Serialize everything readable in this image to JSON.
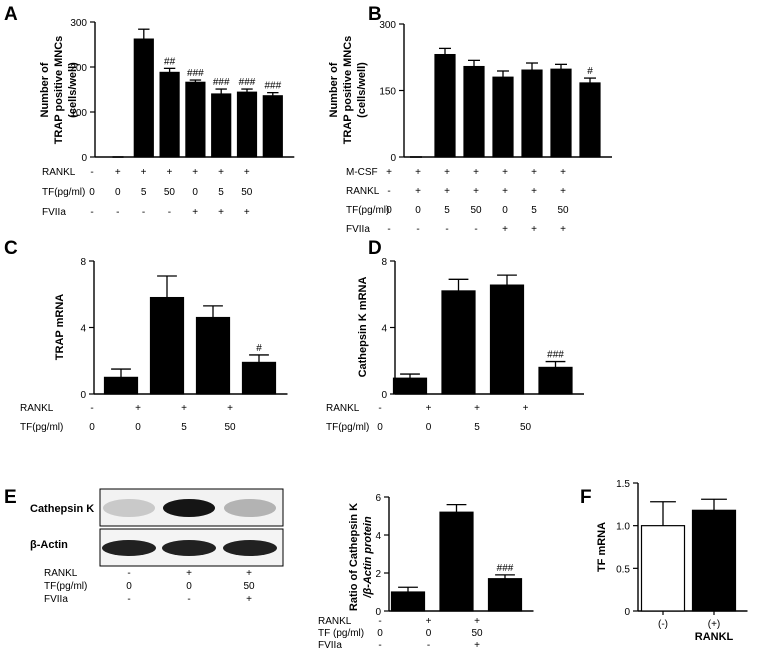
{
  "panels": {
    "A": {
      "letter": "A",
      "ylabel_lines": [
        "Number of",
        "TRAP positive MNCs",
        "(cells/well)"
      ],
      "yticks": [
        "0",
        "100",
        "200",
        "300"
      ],
      "ylim": [
        0,
        300
      ]
    },
    "B": {
      "letter": "B",
      "ylabel_lines": [
        "Number of",
        "TRAP positive MNCs",
        "(cells/well)"
      ],
      "yticks": [
        "0",
        "150",
        "300"
      ],
      "ylim": [
        0,
        300
      ]
    },
    "C": {
      "letter": "C",
      "ylabel": "TRAP mRNA",
      "yticks": [
        "0",
        "4",
        "8"
      ],
      "ylim": [
        0,
        8
      ]
    },
    "D": {
      "letter": "D",
      "ylabel": "Cathepsin K mRNA",
      "yticks": [
        "0",
        "4",
        "8"
      ],
      "ylim": [
        0,
        8
      ]
    },
    "E": {
      "letter": "E",
      "ylabel_lines": [
        "Ratio of Cathepsin K",
        "/β-Actin protein"
      ],
      "yticks": [
        "0",
        "2",
        "4",
        "6"
      ],
      "ylim": [
        0,
        6
      ],
      "blot_labels": [
        "Cathepsin K",
        "β-Actin"
      ],
      "blot_intensity": {
        "cathepsin_k": [
          0.15,
          0.95,
          0.25
        ],
        "beta_actin": [
          0.9,
          0.9,
          0.9
        ]
      }
    },
    "F": {
      "letter": "F",
      "ylabel": "TF mRNA",
      "yticks": [
        "0",
        "0.5",
        "1.0",
        "1.5"
      ],
      "ylim": [
        0,
        1.5
      ],
      "xlabel": "RANKL"
    }
  },
  "tables": {
    "A": [
      {
        "label": "RANKL",
        "values": [
          "-",
          "+",
          "+",
          "+",
          "+",
          "+",
          "+"
        ]
      },
      {
        "label": "TF(pg/ml)",
        "values": [
          "0",
          "0",
          "5",
          "50",
          "0",
          "5",
          "50"
        ]
      },
      {
        "label": "FVIIa",
        "values": [
          "-",
          "-",
          "-",
          "-",
          "+",
          "+",
          "+"
        ]
      }
    ],
    "B": [
      {
        "label": "M-CSF",
        "values": [
          "+",
          "+",
          "+",
          "+",
          "+",
          "+",
          "+"
        ]
      },
      {
        "label": "RANKL",
        "values": [
          "-",
          "+",
          "+",
          "+",
          "+",
          "+",
          "+"
        ]
      },
      {
        "label": "TF(pg/ml)",
        "values": [
          "0",
          "0",
          "5",
          "50",
          "0",
          "5",
          "50"
        ]
      },
      {
        "label": "FVIIa",
        "values": [
          "-",
          "-",
          "-",
          "-",
          "+",
          "+",
          "+"
        ]
      }
    ],
    "C": [
      {
        "label": "RANKL",
        "values": [
          "-",
          "+",
          "+",
          "+"
        ]
      },
      {
        "label": "TF(pg/ml)",
        "values": [
          "0",
          "0",
          "5",
          "50"
        ]
      }
    ],
    "D": [
      {
        "label": "RANKL",
        "values": [
          "-",
          "+",
          "+",
          "+"
        ]
      },
      {
        "label": "TF(pg/ml)",
        "values": [
          "0",
          "0",
          "5",
          "50"
        ]
      }
    ],
    "E_blot": [
      {
        "label": "RANKL",
        "values": [
          "-",
          "+",
          "+"
        ]
      },
      {
        "label": "TF(pg/ml)",
        "values": [
          "0",
          "0",
          "50"
        ]
      },
      {
        "label": "FVIIa",
        "values": [
          "-",
          "-",
          "+"
        ]
      }
    ],
    "E_chart": [
      {
        "label": "RANKL",
        "values": [
          "-",
          "+",
          "+"
        ]
      },
      {
        "label": "TF (pg/ml)",
        "values": [
          "0",
          "0",
          "50"
        ]
      },
      {
        "label": "FVIIa",
        "values": [
          "-",
          "-",
          "+"
        ]
      }
    ]
  },
  "chart_data": [
    {
      "panel": "A",
      "type": "bar",
      "ylim": [
        0,
        300
      ],
      "values": [
        0,
        262,
        188,
        166,
        140,
        144,
        136
      ],
      "errors": [
        0,
        22,
        9,
        5,
        11,
        7,
        7
      ],
      "annotations": [
        "",
        "",
        "##",
        "###",
        "###",
        "###",
        "###"
      ]
    },
    {
      "panel": "B",
      "type": "bar",
      "ylim": [
        0,
        300
      ],
      "values": [
        0,
        231,
        204,
        180,
        196,
        198,
        167
      ],
      "errors": [
        0,
        14,
        14,
        14,
        16,
        11,
        11
      ],
      "annotations": [
        "",
        "",
        "",
        "",
        "",
        "",
        "#"
      ]
    },
    {
      "panel": "C",
      "type": "bar",
      "ylim": [
        0,
        8
      ],
      "values": [
        1.0,
        5.8,
        4.6,
        1.9
      ],
      "errors": [
        0.5,
        1.3,
        0.7,
        0.45
      ],
      "annotations": [
        "",
        "",
        "",
        "#"
      ]
    },
    {
      "panel": "D",
      "type": "bar",
      "ylim": [
        0,
        8
      ],
      "values": [
        0.95,
        6.2,
        6.55,
        1.6
      ],
      "errors": [
        0.25,
        0.7,
        0.6,
        0.35
      ],
      "annotations": [
        "",
        "",
        "",
        "###"
      ]
    },
    {
      "panel": "E",
      "type": "bar",
      "ylim": [
        0,
        6
      ],
      "values": [
        1.0,
        5.2,
        1.7
      ],
      "errors": [
        0.25,
        0.4,
        0.2
      ],
      "annotations": [
        "",
        "",
        "###"
      ]
    },
    {
      "panel": "F",
      "type": "bar",
      "ylim": [
        0,
        1.5
      ],
      "categories": [
        "(-)",
        "(+)"
      ],
      "values": [
        1.0,
        1.18
      ],
      "errors": [
        0.28,
        0.13
      ],
      "fills": [
        "#ffffff",
        "#000000"
      ],
      "annotations": [
        "",
        ""
      ]
    }
  ]
}
